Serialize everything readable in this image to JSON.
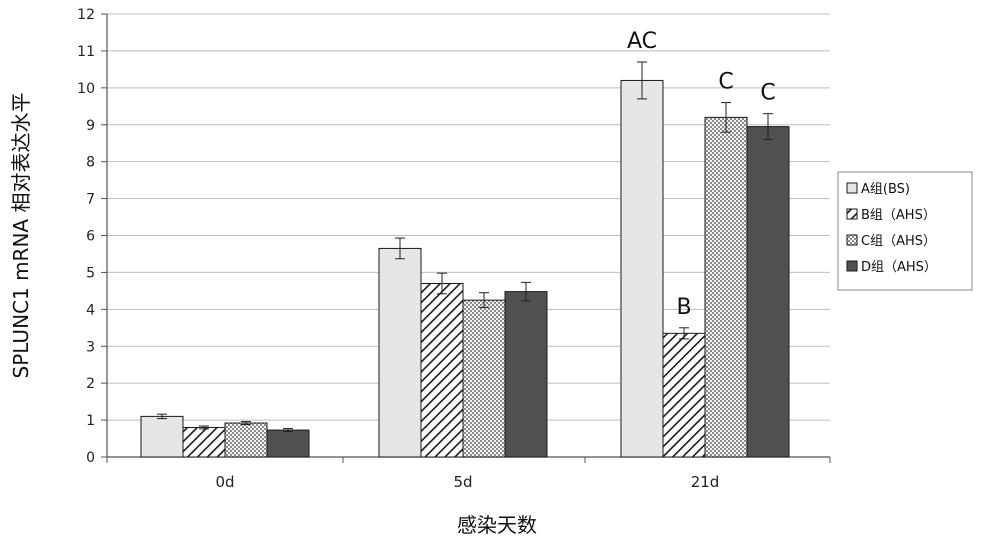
{
  "chart_data": {
    "type": "bar",
    "title": "",
    "xlabel": "感染天数",
    "ylabel": "SPLUNC1 mRNA 相对表达水平",
    "categories": [
      "0d",
      "5d",
      "21d"
    ],
    "ylim": [
      0,
      12
    ],
    "yticks": [
      0,
      1,
      2,
      3,
      4,
      5,
      6,
      7,
      8,
      9,
      10,
      11,
      12
    ],
    "grid": true,
    "legend_position": "right",
    "series": [
      {
        "name": "A组(BS)",
        "values": [
          1.1,
          5.65,
          10.2
        ],
        "errors": [
          0.06,
          0.28,
          0.5
        ],
        "color": "#e6e6e6",
        "pattern": "solid-light"
      },
      {
        "name": "B组（AHS）",
        "values": [
          0.8,
          4.7,
          3.35
        ],
        "errors": [
          0.04,
          0.28,
          0.15
        ],
        "color": "#ffffff",
        "pattern": "diagonal-hatch"
      },
      {
        "name": "C组（AHS）",
        "values": [
          0.92,
          4.25,
          9.2
        ],
        "errors": [
          0.04,
          0.2,
          0.4
        ],
        "color": "#cfcfcf",
        "pattern": "checker"
      },
      {
        "name": "D组（AHS）",
        "values": [
          0.73,
          4.48,
          8.95
        ],
        "errors": [
          0.04,
          0.25,
          0.35
        ],
        "color": "#505050",
        "pattern": "solid-dark"
      }
    ],
    "annotations": [
      {
        "text": "AC",
        "category": "21d",
        "series": 0
      },
      {
        "text": "B",
        "category": "21d",
        "series": 1
      },
      {
        "text": "C",
        "category": "21d",
        "series": 2
      },
      {
        "text": "C",
        "category": "21d",
        "series": 3
      }
    ]
  }
}
